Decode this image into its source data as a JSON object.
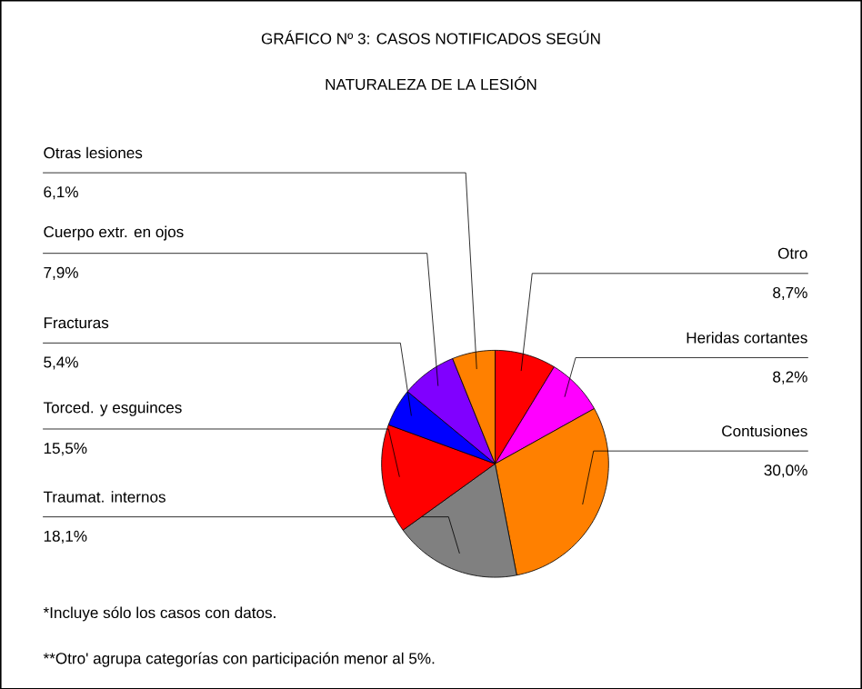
{
  "chart_data": {
    "type": "pie",
    "title": "GRÁFICO Nº 3: CASOS NOTIFICADOS SEGÚN",
    "subtitle": "NATURALEZA DE LA LESIÓN",
    "categories": [
      "Otro",
      "Heridas cortantes",
      "Contusiones",
      "Traumat. internos",
      "Torced. y esguinces",
      "Fracturas",
      "Cuerpo extr. en ojos",
      "Otras lesiones"
    ],
    "values": [
      8.7,
      8.2,
      30.0,
      18.1,
      15.5,
      5.4,
      7.9,
      6.1
    ],
    "value_labels": [
      "8,7%",
      "8,2%",
      "30,0%",
      "18,1%",
      "15,5%",
      "5,4%",
      "7,9%",
      "6,1%"
    ],
    "colors": [
      "#ff0000",
      "#ff00ff",
      "#ff8000",
      "#808080",
      "#ff0000",
      "#0000ff",
      "#8000ff",
      "#ff8000"
    ],
    "annotations": [
      "*Incluye sólo los casos con datos.",
      "**Otro' agrupa categorías con participación menor al 5%."
    ]
  }
}
